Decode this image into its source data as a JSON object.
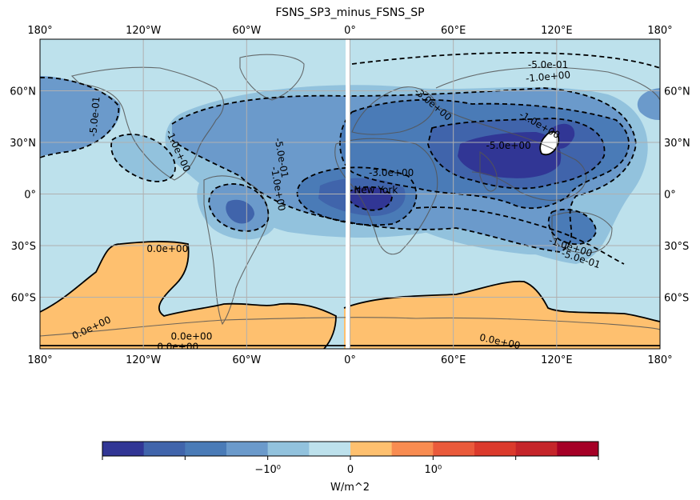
{
  "chart_data": {
    "type": "heatmap",
    "title": "FSNS_SP3_minus_FSNS_SP",
    "projection": "PlateCarree",
    "x_ticks": [
      "180°",
      "120°W",
      "60°W",
      "0°",
      "60°E",
      "120°E",
      "180°"
    ],
    "x_tick_values": [
      -180,
      -120,
      -60,
      0,
      60,
      120,
      180
    ],
    "y_ticks_left": [
      "60°N",
      "30°N",
      "0°",
      "30°S",
      "60°S"
    ],
    "y_ticks_right": [
      "60°N",
      "30°N",
      "0°",
      "30°S",
      "60°S"
    ],
    "y_tick_values": [
      60,
      30,
      0,
      -30,
      -60
    ],
    "xlim": [
      -180,
      180
    ],
    "ylim": [
      -90,
      90
    ],
    "grid": true,
    "contour_labels": [
      {
        "text": "-5.0e-01",
        "lon": -148,
        "lat": 45,
        "angle": -85
      },
      {
        "text": "-5.0e-01",
        "lon": 115,
        "lat": 75,
        "angle": 0
      },
      {
        "text": "-1.0e+00",
        "lon": 115,
        "lat": 68,
        "angle": -5
      },
      {
        "text": "-3.0e+00",
        "lon": 48,
        "lat": 52,
        "angle": 40
      },
      {
        "text": "-5.0e+00",
        "lon": 92,
        "lat": 28,
        "angle": 0
      },
      {
        "text": "-1.0e+00",
        "lon": 110,
        "lat": 40,
        "angle": 30
      },
      {
        "text": "-3.0e+00",
        "lon": 24,
        "lat": 12,
        "angle": 0
      },
      {
        "text": "-5.0e-01",
        "lon": -40,
        "lat": 21,
        "angle": 80
      },
      {
        "text": "-1.0e+00",
        "lon": -42,
        "lat": 3,
        "angle": 80
      },
      {
        "text": "-1.0e+00",
        "lon": -100,
        "lat": 25,
        "angle": 65
      },
      {
        "text": "-1.0e+00",
        "lon": 128,
        "lat": -31,
        "angle": 18
      },
      {
        "text": "-5.0e-01",
        "lon": 134,
        "lat": -38,
        "angle": 18
      },
      {
        "text": "0.0e+00",
        "lon": -106,
        "lat": -32,
        "angle": 0
      },
      {
        "text": "0.0e+00",
        "lon": -150,
        "lat": -78,
        "angle": -25
      },
      {
        "text": "0.0e+00",
        "lon": -92,
        "lat": -83,
        "angle": 0
      },
      {
        "text": "0.0e+00",
        "lon": -100,
        "lat": -89,
        "angle": 0
      },
      {
        "text": "0.0e+00",
        "lon": 87,
        "lat": -86,
        "angle": 12
      }
    ],
    "annotations": [
      {
        "text": "New York",
        "lon": 15,
        "lat": 2
      }
    ],
    "colorbar": {
      "label": "W/m^2",
      "tick_labels": [
        "−10⁰",
        "0",
        "10⁰"
      ],
      "n_colors": 12,
      "colors": [
        "#313695",
        "#4064ab",
        "#4a7bb7",
        "#6b9acb",
        "#92c2dd",
        "#bde1ec",
        "#fec06f",
        "#f88c51",
        "#ea5a3b",
        "#db3a2c",
        "#c5252a",
        "#a50026"
      ]
    }
  },
  "colors": {
    "ocean_base": "#bde1ec",
    "level_1": "#92c2dd",
    "level_2": "#6b9acb",
    "level_3": "#4a7bb7",
    "level_4": "#4064ab",
    "level_5": "#313695",
    "positive": "#fec06f",
    "coast": "#555555",
    "grid": "#b0b0b0"
  }
}
